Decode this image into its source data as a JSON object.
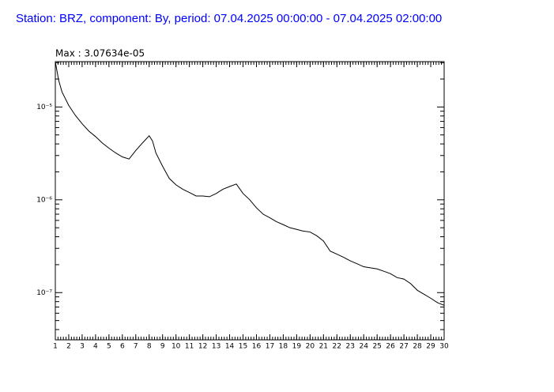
{
  "chart_data": {
    "type": "line",
    "title": "Station: BRZ, component: By, period: 07.04.2025 00:00:00 - 07.04.2025 02:00:00",
    "annotation": "Max : 3.07634e-05",
    "x": [
      1,
      1.25,
      1.5,
      2,
      2.5,
      3,
      3.5,
      4,
      4.5,
      5,
      5.5,
      6,
      6.5,
      7,
      7.5,
      8,
      8.25,
      8.5,
      9,
      9.5,
      10,
      10.5,
      11,
      11.5,
      12,
      12.5,
      13,
      13.5,
      14,
      14.5,
      15,
      15.5,
      16,
      16.5,
      17,
      17.5,
      18,
      18.5,
      19,
      19.5,
      20,
      20.5,
      21,
      21.5,
      22,
      22.5,
      23,
      23.5,
      24,
      24.5,
      25,
      25.5,
      26,
      26.5,
      27,
      27.5,
      28,
      28.5,
      29,
      29.5,
      30
    ],
    "values": [
      3.07e-05,
      1.94e-05,
      1.45e-05,
      1.04e-05,
      8.1e-06,
      6.6e-06,
      5.5e-06,
      4.8e-06,
      4.1e-06,
      3.6e-06,
      3.2e-06,
      2.9e-06,
      2.75e-06,
      3.4e-06,
      4.1e-06,
      4.9e-06,
      4.3e-06,
      3.2e-06,
      2.3e-06,
      1.7e-06,
      1.45e-06,
      1.3e-06,
      1.2e-06,
      1.1e-06,
      1.1e-06,
      1.08e-06,
      1.17e-06,
      1.3e-06,
      1.39e-06,
      1.48e-06,
      1.17e-06,
      1e-06,
      8.2e-07,
      7e-07,
      6.4e-07,
      5.8e-07,
      5.4e-07,
      5e-07,
      4.8e-07,
      4.6e-07,
      4.5e-07,
      4.1e-07,
      3.6e-07,
      2.8e-07,
      2.6e-07,
      2.4e-07,
      2.2e-07,
      2.05e-07,
      1.9e-07,
      1.85e-07,
      1.8e-07,
      1.7e-07,
      1.6e-07,
      1.45e-07,
      1.4e-07,
      1.25e-07,
      1.06e-07,
      9.6e-08,
      8.7e-08,
      7.8e-08,
      7.3e-08
    ],
    "color": "#000000",
    "xlim": [
      1,
      30
    ],
    "xticks": [
      1,
      2,
      3,
      4,
      5,
      6,
      7,
      8,
      9,
      10,
      11,
      12,
      13,
      14,
      15,
      16,
      17,
      18,
      19,
      20,
      21,
      22,
      23,
      24,
      25,
      26,
      27,
      28,
      29,
      30
    ],
    "xminorstep": 0.2,
    "ylim": [
      3.1e-08,
      3.08e-05
    ],
    "ylog": true,
    "yticks": [
      {
        "value": 1e-05,
        "label": "10⁻⁵"
      },
      {
        "value": 1e-06,
        "label": "10⁻⁶"
      },
      {
        "value": 1e-07,
        "label": "10⁻⁷"
      }
    ],
    "yminorticks": [
      4e-08,
      5e-08,
      6e-08,
      7e-08,
      8e-08,
      9e-08,
      2e-07,
      3e-07,
      4e-07,
      5e-07,
      6e-07,
      7e-07,
      8e-07,
      9e-07,
      2e-06,
      3e-06,
      4e-06,
      5e-06,
      6e-06,
      7e-06,
      8e-06,
      9e-06,
      2e-05,
      3e-05
    ]
  }
}
